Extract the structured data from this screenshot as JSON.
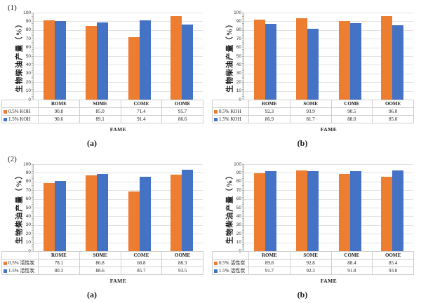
{
  "figure": {
    "background": "#FFFFFF",
    "description_colors": {
      "series1_orange": "#ED7D31",
      "series2_blue": "#4472C4",
      "gridline": "#E2E2E2",
      "axis": "#BFBFBF",
      "table_border": "#CFCFCF"
    }
  },
  "chart_data": [
    {
      "type": "bar",
      "panel_label": "(1)",
      "caption": "(a)",
      "categories": [
        "ROME",
        "SOME",
        "COME",
        "OOME"
      ],
      "series": [
        {
          "name": "0.5% KOH",
          "color": "#ED7D31",
          "values": [
            90.8,
            85.0,
            71.4,
            95.7
          ],
          "display": [
            "90.8",
            "85.0",
            "71.4",
            "95.7"
          ]
        },
        {
          "name": "1.5% KOH",
          "color": "#4472C4",
          "values": [
            90.6,
            89.1,
            91.4,
            86.6
          ],
          "display": [
            "90.6",
            "89.1",
            "91.4",
            "86.6"
          ]
        }
      ],
      "ylabel": "生物柴油产量（%）",
      "xlabel": "FAME",
      "ylim": [
        0,
        100
      ],
      "ytick_step": 10,
      "yticks": [
        "0",
        "10",
        "20",
        "30",
        "40",
        "50",
        "60",
        "70",
        "80",
        "90",
        "100"
      ],
      "grid": true,
      "legend_position": "table-left"
    },
    {
      "type": "bar",
      "panel_label": "",
      "caption": "(b)",
      "categories": [
        "ROME",
        "SOME",
        "COME",
        "OOME"
      ],
      "series": [
        {
          "name": "0.5% KOH",
          "color": "#ED7D31",
          "values": [
            92.3,
            93.9,
            90.5,
            96.0
          ],
          "display": [
            "92.3",
            "93.9",
            "90.5",
            "96.0"
          ]
        },
        {
          "name": "1.5% KOH",
          "color": "#4472C4",
          "values": [
            86.9,
            81.7,
            88.0,
            85.6
          ],
          "display": [
            "86.9",
            "81.7",
            "88.0",
            "85.6"
          ]
        }
      ],
      "ylabel": "生物柴油产量（%）",
      "xlabel": "FAME",
      "ylim": [
        0,
        100
      ],
      "ytick_step": 10,
      "yticks": [
        "0",
        "10",
        "20",
        "30",
        "40",
        "50",
        "60",
        "70",
        "80",
        "90",
        "100"
      ],
      "grid": true,
      "legend_position": "table-left"
    },
    {
      "type": "bar",
      "panel_label": "(2)",
      "caption": "(a)",
      "categories": [
        "ROME",
        "SOME",
        "COME",
        "OOME"
      ],
      "series": [
        {
          "name": "0.5% 活性炭",
          "color": "#ED7D31",
          "values": [
            78.1,
            86.8,
            68.8,
            88.3
          ],
          "display": [
            "78.1",
            "86.8",
            "68.8",
            "88.3"
          ]
        },
        {
          "name": "1.5% 活性炭",
          "color": "#4472C4",
          "values": [
            80.3,
            88.6,
            85.7,
            93.5
          ],
          "display": [
            "80.3",
            "88.6",
            "85.7",
            "93.5"
          ]
        }
      ],
      "ylabel": "生物柴油产量（%）",
      "xlabel": "FAME",
      "ylim": [
        0,
        100
      ],
      "ytick_step": 10,
      "yticks": [
        "0",
        "10",
        "20",
        "30",
        "40",
        "50",
        "60",
        "70",
        "80",
        "90",
        "100"
      ],
      "grid": true,
      "legend_position": "table-left"
    },
    {
      "type": "bar",
      "panel_label": "",
      "caption": "(b)",
      "categories": [
        "ROME",
        "SOME",
        "COME",
        "OOME"
      ],
      "series": [
        {
          "name": "0.5% 活性炭",
          "color": "#ED7D31",
          "values": [
            89.8,
            92.8,
            88.4,
            85.4
          ],
          "display": [
            "89.8",
            "92.8",
            "88.4",
            "85.4"
          ]
        },
        {
          "name": "1.5% 活性炭",
          "color": "#4472C4",
          "values": [
            91.7,
            92.3,
            91.8,
            93.0
          ],
          "display": [
            "91.7",
            "92.3",
            "91.8",
            "93.0"
          ]
        }
      ],
      "ylabel": "生物柴油产量（%）",
      "xlabel": "FAME",
      "ylim": [
        0,
        100
      ],
      "ytick_step": 10,
      "yticks": [
        "0",
        "10",
        "20",
        "30",
        "40",
        "50",
        "60",
        "70",
        "80",
        "90",
        "100"
      ],
      "grid": true,
      "legend_position": "table-left"
    }
  ]
}
